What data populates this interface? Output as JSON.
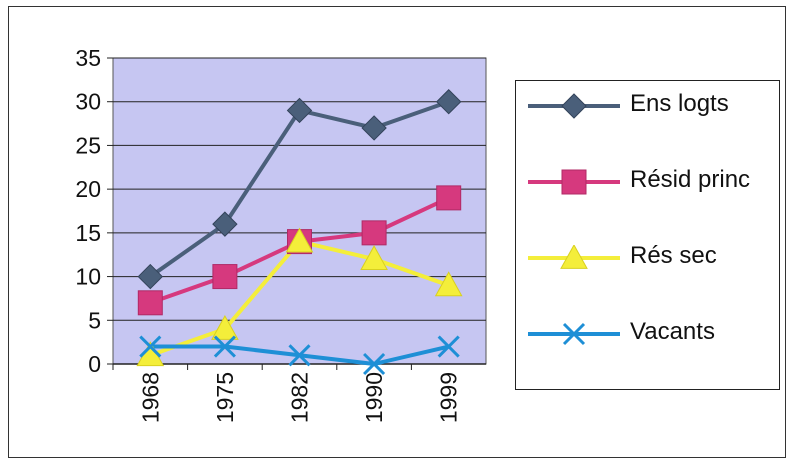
{
  "chart_data": {
    "type": "line",
    "categories": [
      "1968",
      "1975",
      "1982",
      "1990",
      "1999"
    ],
    "ylim": [
      0,
      35
    ],
    "yticks": [
      "0",
      "5",
      "10",
      "15",
      "20",
      "25",
      "30",
      "35"
    ],
    "grid": true,
    "legend_placement": "right",
    "plot_background": "#c6c6f2",
    "series": [
      {
        "name": "Ens logts",
        "values": [
          10,
          16,
          29,
          27,
          30
        ],
        "color": "#4a5f7a",
        "marker": "diamond"
      },
      {
        "name": "Résid princ",
        "values": [
          7,
          10,
          14,
          15,
          19
        ],
        "color": "#d6397e",
        "marker": "square"
      },
      {
        "name": "Rés sec",
        "values": [
          1,
          4,
          14,
          12,
          9
        ],
        "color": "#f4ee3a",
        "marker": "triangle"
      },
      {
        "name": "Vacants",
        "values": [
          2,
          2,
          1,
          0,
          2
        ],
        "color": "#1e8fd6",
        "marker": "x"
      }
    ]
  }
}
